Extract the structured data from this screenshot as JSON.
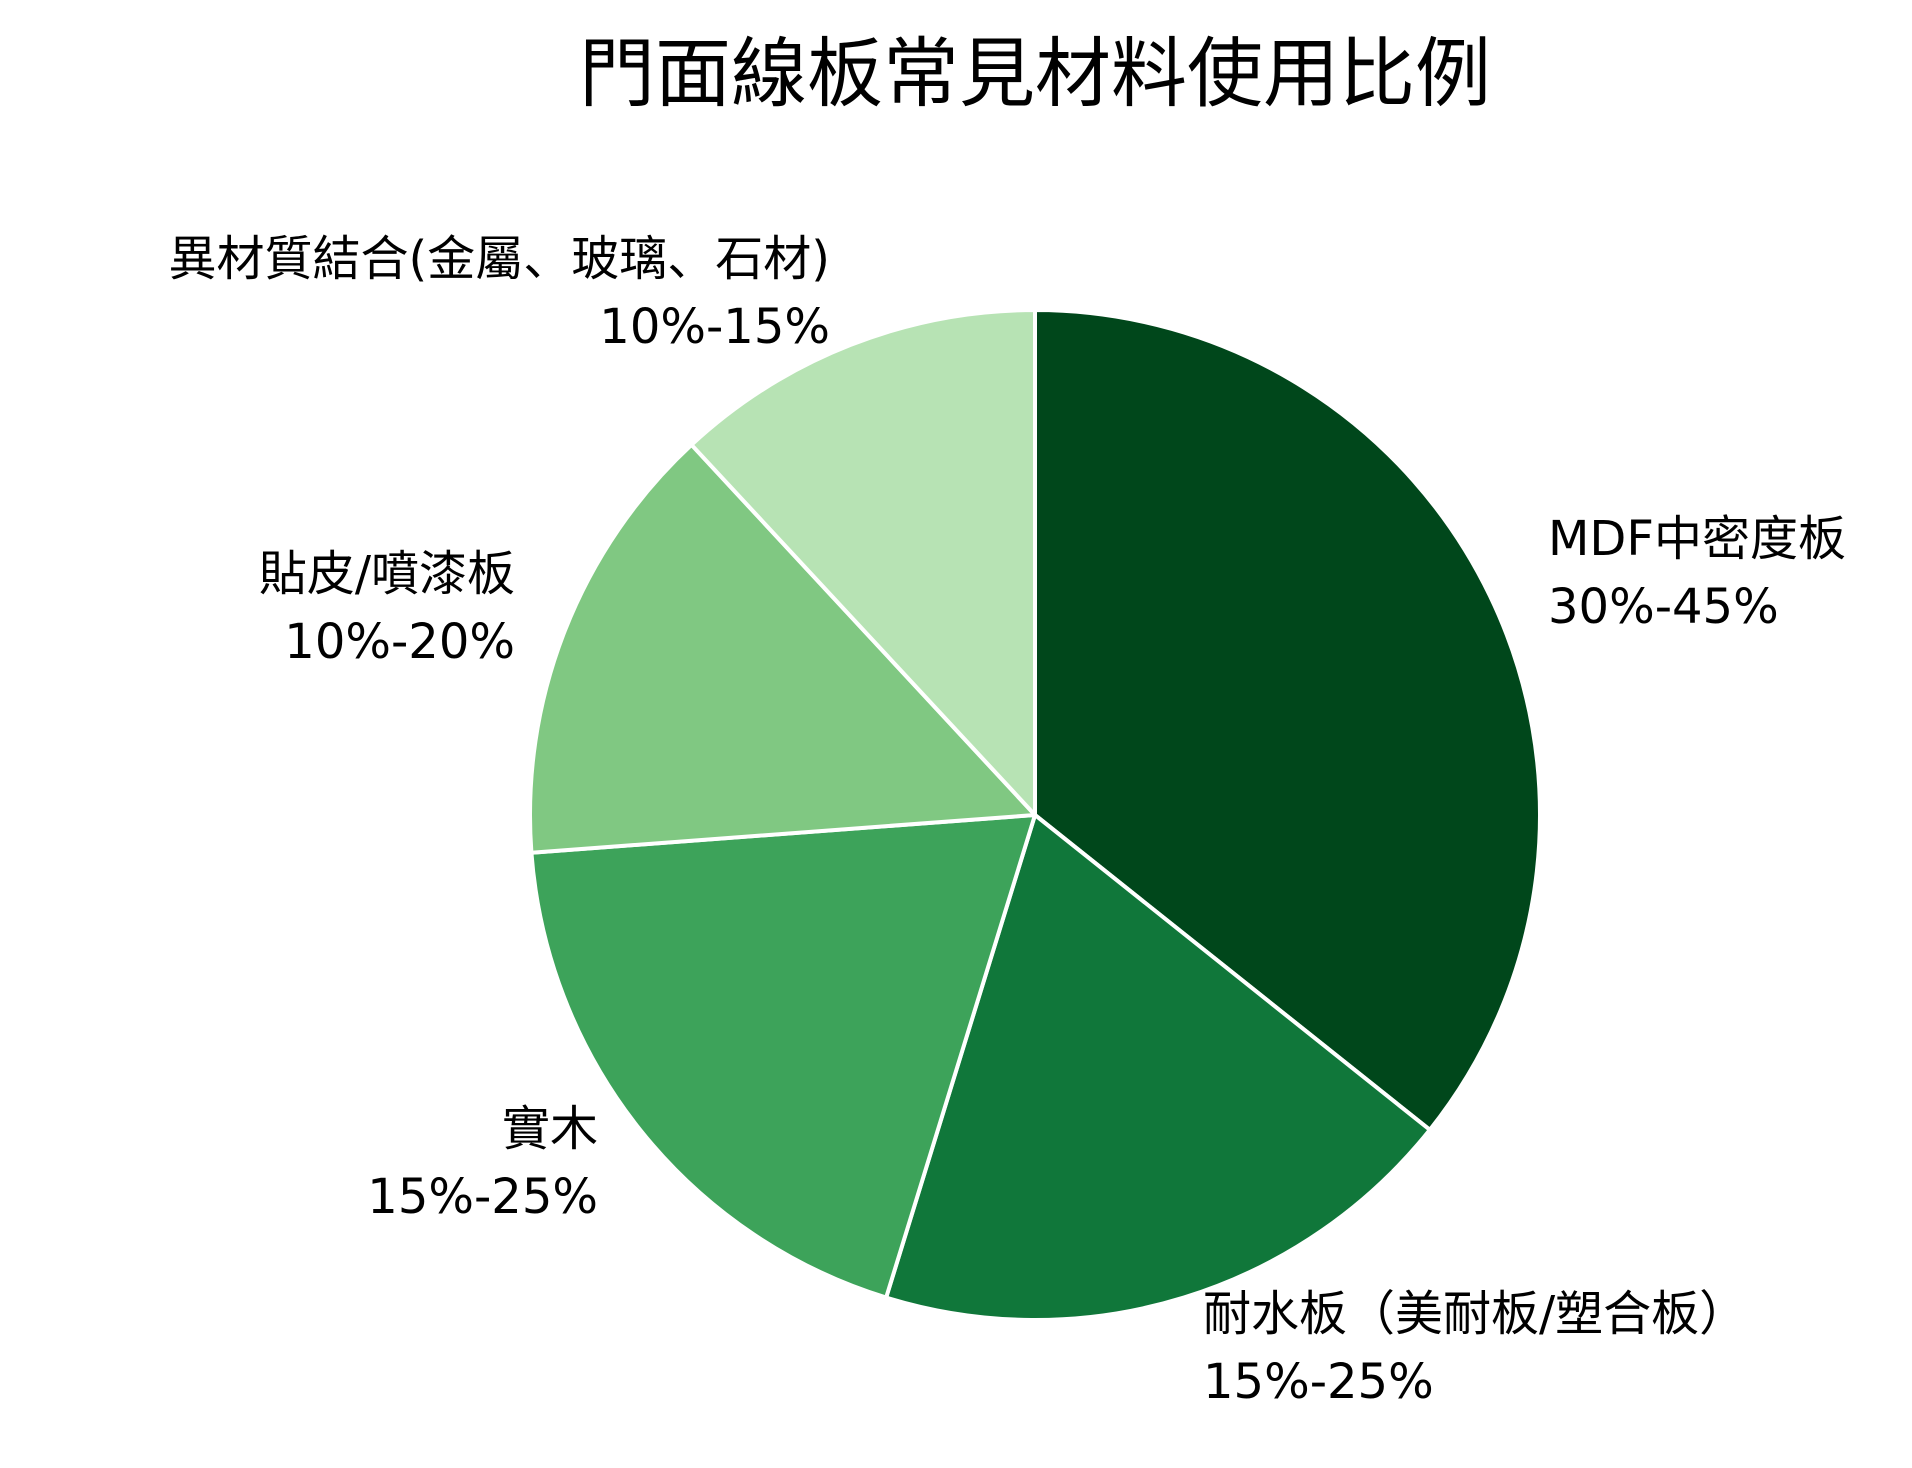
{
  "chart_data": {
    "type": "pie",
    "title": "門面線板常見材料使用比例",
    "start_angle_deg": 90,
    "direction": "clockwise",
    "slices": [
      {
        "name": "MDF中密度板",
        "range_label": "30%-45%",
        "value": 37.5,
        "color": "#00471b"
      },
      {
        "name": "耐水板（美耐板/塑合板）",
        "range_label": "15%-25%",
        "value": 20,
        "color": "#10773a"
      },
      {
        "name": "實木",
        "range_label": "15%-25%",
        "value": 20,
        "color": "#3da35a"
      },
      {
        "name": "貼皮/噴漆板",
        "range_label": "10%-20%",
        "value": 15,
        "color": "#80c882"
      },
      {
        "name": "異材質結合(金屬、玻璃、石材)",
        "range_label": "10%-15%",
        "value": 12.5,
        "color": "#b7e3b4"
      }
    ]
  }
}
